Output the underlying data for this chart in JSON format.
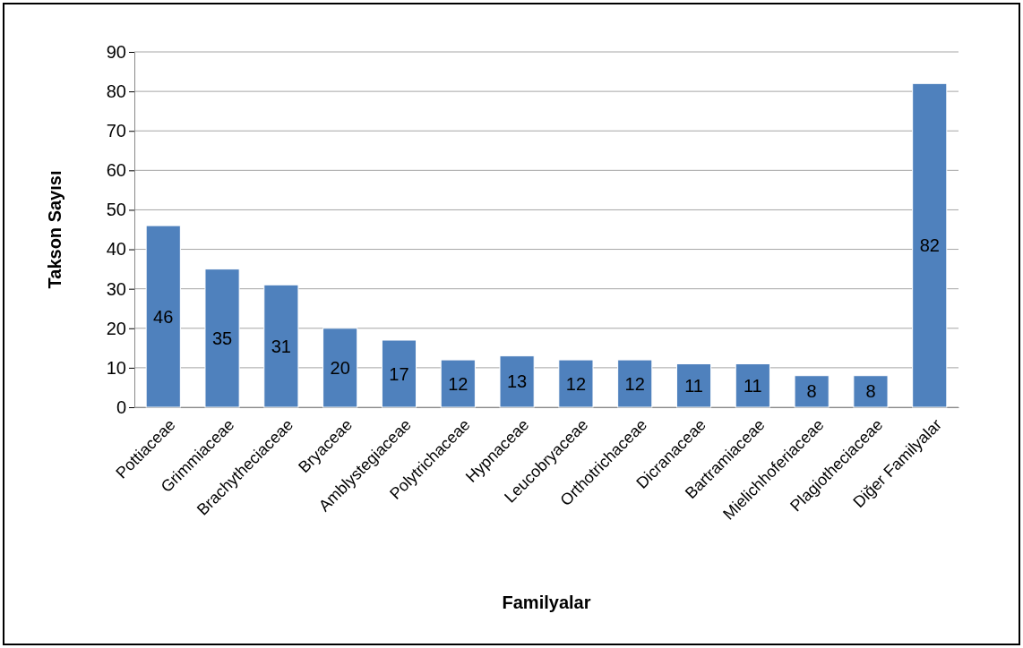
{
  "chart_data": {
    "type": "bar",
    "xlabel": "Familyalar",
    "ylabel": "Takson Sayısı",
    "categories": [
      "Pottiaceae",
      "Grimmiaceae",
      "Brachytheciaceae",
      "Bryaceae",
      "Amblystegiaceae",
      "Polytrichaceae",
      "Hypnaceae",
      "Leucobryaceae",
      "Orthotrichaceae",
      "Dicranaceae",
      "Bartramiaceae",
      "Mielichhoferiaceae",
      "Plagiotheciaceae",
      "Diğer Familyalar"
    ],
    "values": [
      46,
      35,
      31,
      20,
      17,
      12,
      13,
      12,
      12,
      11,
      11,
      8,
      8,
      82
    ],
    "color": "#4f81bd",
    "ylim": [
      0,
      90
    ],
    "yticks": [
      0,
      10,
      20,
      30,
      40,
      50,
      60,
      70,
      80,
      90
    ],
    "grid": "y",
    "data_labels": true
  }
}
